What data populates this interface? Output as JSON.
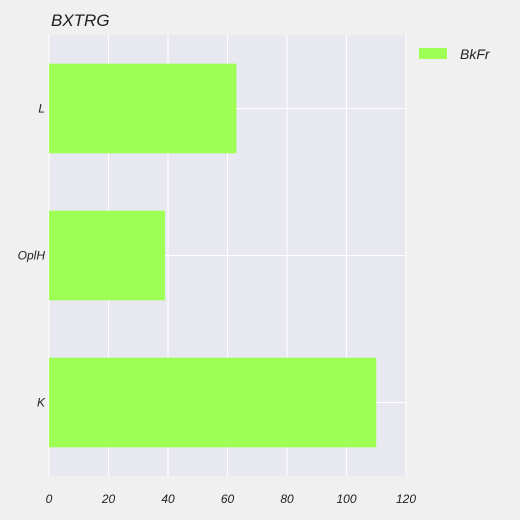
{
  "chart_data": {
    "type": "bar",
    "orientation": "horizontal",
    "title": "BXTRG",
    "xlabel": "",
    "ylabel": "",
    "categories": [
      "L",
      "OplH",
      "K"
    ],
    "series": [
      {
        "name": "BkFr",
        "values": [
          63,
          39,
          110
        ],
        "color": "#9eff55"
      }
    ],
    "xlim": [
      0,
      120
    ],
    "xticks": [
      0,
      20,
      40,
      60,
      80,
      100,
      120
    ],
    "grid": true,
    "legend_position": "top-right",
    "colors": {
      "background": "#f0f0f0",
      "plot_background": "#e8e8f0",
      "grid": "#ffffff",
      "text": "#222222"
    }
  }
}
